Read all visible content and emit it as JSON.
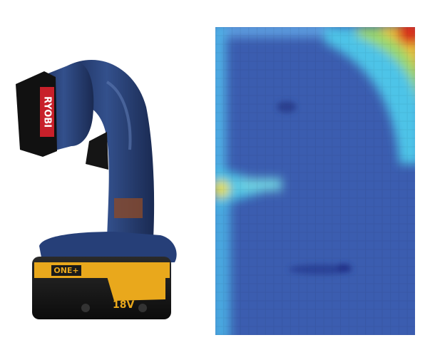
{
  "photo": {
    "brand_label": "RYOBI",
    "battery_label": "ONE+",
    "voltage_label": "18V"
  }
}
